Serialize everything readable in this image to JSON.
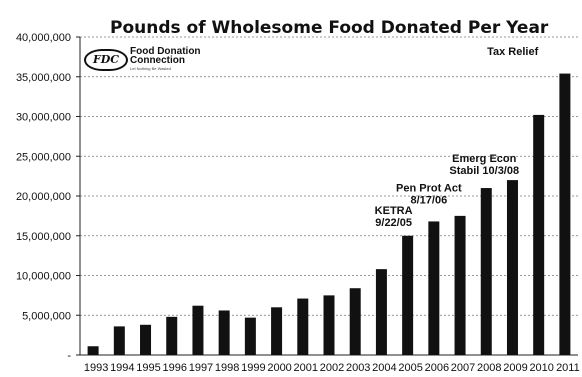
{
  "chart_data": {
    "type": "bar",
    "title": "Pounds of Wholesome Food Donated Per Year",
    "categories": [
      "1993",
      "1994",
      "1995",
      "1996",
      "1997",
      "1998",
      "1999",
      "2000",
      "2001",
      "2002",
      "2003",
      "2004",
      "2005",
      "2006",
      "2007",
      "2008",
      "2009",
      "2010",
      "2011"
    ],
    "values": [
      1100000,
      3600000,
      3800000,
      4800000,
      6200000,
      5600000,
      4700000,
      6000000,
      7100000,
      7500000,
      8400000,
      10800000,
      15000000,
      16800000,
      17500000,
      21000000,
      22000000,
      30200000,
      35400000
    ],
    "ylim": [
      0,
      40000000
    ],
    "yticks": [
      "-",
      "5,000,000",
      "10,000,000",
      "15,000,000",
      "20,000,000",
      "25,000,000",
      "30,000,000",
      "35,000,000",
      "40,000,000"
    ],
    "ytick_values": [
      0,
      5000000,
      10000000,
      15000000,
      20000000,
      25000000,
      30000000,
      35000000,
      40000000
    ],
    "grid": true,
    "bar_color": "#111111",
    "annotations": [
      {
        "lines": [
          "KETRA",
          "9/22/05"
        ],
        "category": "2005"
      },
      {
        "lines": [
          "Pen Prot Act",
          "8/17/06"
        ],
        "category": "2006"
      },
      {
        "lines": [
          "Emerg Econ",
          "Stabil 10/3/08"
        ],
        "category": "2008"
      },
      {
        "lines": [
          "Tax Relief"
        ],
        "category": "2010"
      }
    ]
  },
  "logo": {
    "badge": "FDC",
    "name_line1": "Food Donation",
    "name_line2": "Connection",
    "tagline": "Let Nothing Be Wasted"
  }
}
